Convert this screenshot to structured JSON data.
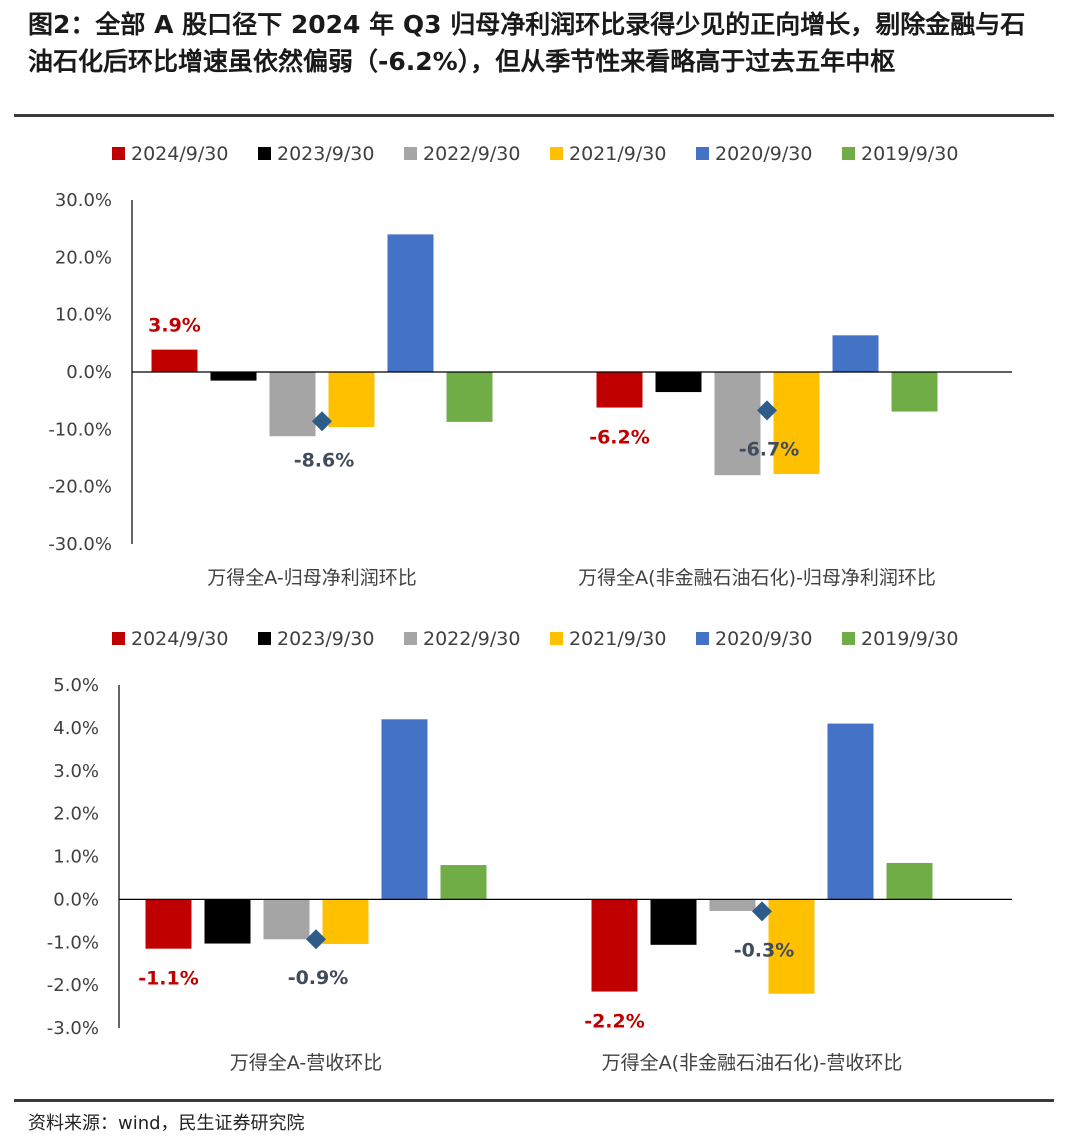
{
  "title": "图2：全部 A 股口径下 2024 年 Q3 归母净利润环比录得少见的正向增长，剔除金融与石油石化后环比增速虽依然偏弱（-6.2%），但从季节性来看略高于过去五年中枢",
  "source": "资料来源：wind，民生证券研究院",
  "colors": {
    "2024/9/30": "#C00000",
    "2023/9/30": "#000000",
    "2022/9/30": "#A5A5A5",
    "2021/9/30": "#FFC000",
    "2020/9/30": "#4472C4",
    "2019/9/30": "#70AD47",
    "median_marker": "#2E5C8A",
    "label_red": "#C00000",
    "label_dark": "#404B5C"
  },
  "chart_data": [
    {
      "type": "bar",
      "legend_position": "top",
      "categories": [
        "万得全A-归母净利润环比",
        "万得全A(非金融石油石化)-归母净利润环比"
      ],
      "series": [
        {
          "name": "2024/9/30",
          "values": [
            3.9,
            -6.2
          ]
        },
        {
          "name": "2023/9/30",
          "values": [
            -1.5,
            -3.5
          ]
        },
        {
          "name": "2022/9/30",
          "values": [
            -11.2,
            -18.0
          ]
        },
        {
          "name": "2021/9/30",
          "values": [
            -9.6,
            -17.8
          ]
        },
        {
          "name": "2020/9/30",
          "values": [
            24.0,
            6.4
          ]
        },
        {
          "name": "2019/9/30",
          "values": [
            -8.7,
            -6.9
          ]
        }
      ],
      "markers": {
        "values": [
          -8.6,
          -6.7
        ]
      },
      "data_labels": {
        "current": [
          "3.9%",
          "-6.2%"
        ],
        "markers": [
          "-8.6%",
          "-6.7%"
        ]
      },
      "ylim": [
        -30,
        30
      ],
      "yticks": [
        "30.0%",
        "20.0%",
        "10.0%",
        "0.0%",
        "-10.0%",
        "-20.0%",
        "-30.0%"
      ],
      "ytick_values": [
        30,
        20,
        10,
        0,
        -10,
        -20,
        -30
      ],
      "grid": false
    },
    {
      "type": "bar",
      "legend_position": "top",
      "categories": [
        "万得全A-营收环比",
        "万得全A(非金融石油石化)-营收环比"
      ],
      "series": [
        {
          "name": "2024/9/30",
          "values": [
            -1.15,
            -2.15
          ]
        },
        {
          "name": "2023/9/30",
          "values": [
            -1.03,
            -1.06
          ]
        },
        {
          "name": "2022/9/30",
          "values": [
            -0.93,
            -0.27
          ]
        },
        {
          "name": "2021/9/30",
          "values": [
            -1.04,
            -2.2
          ]
        },
        {
          "name": "2020/9/30",
          "values": [
            4.2,
            4.1
          ]
        },
        {
          "name": "2019/9/30",
          "values": [
            0.8,
            0.85
          ]
        }
      ],
      "markers": {
        "values": [
          -0.93,
          -0.28
        ]
      },
      "data_labels": {
        "current": [
          "-1.1%",
          "-2.2%"
        ],
        "markers": [
          "-0.9%",
          "-0.3%"
        ]
      },
      "ylim": [
        -3,
        5
      ],
      "yticks": [
        "5.0%",
        "4.0%",
        "3.0%",
        "2.0%",
        "1.0%",
        "0.0%",
        "-1.0%",
        "-2.0%",
        "-3.0%"
      ],
      "ytick_values": [
        5,
        4,
        3,
        2,
        1,
        0,
        -1,
        -2,
        -3
      ],
      "grid": false
    }
  ]
}
